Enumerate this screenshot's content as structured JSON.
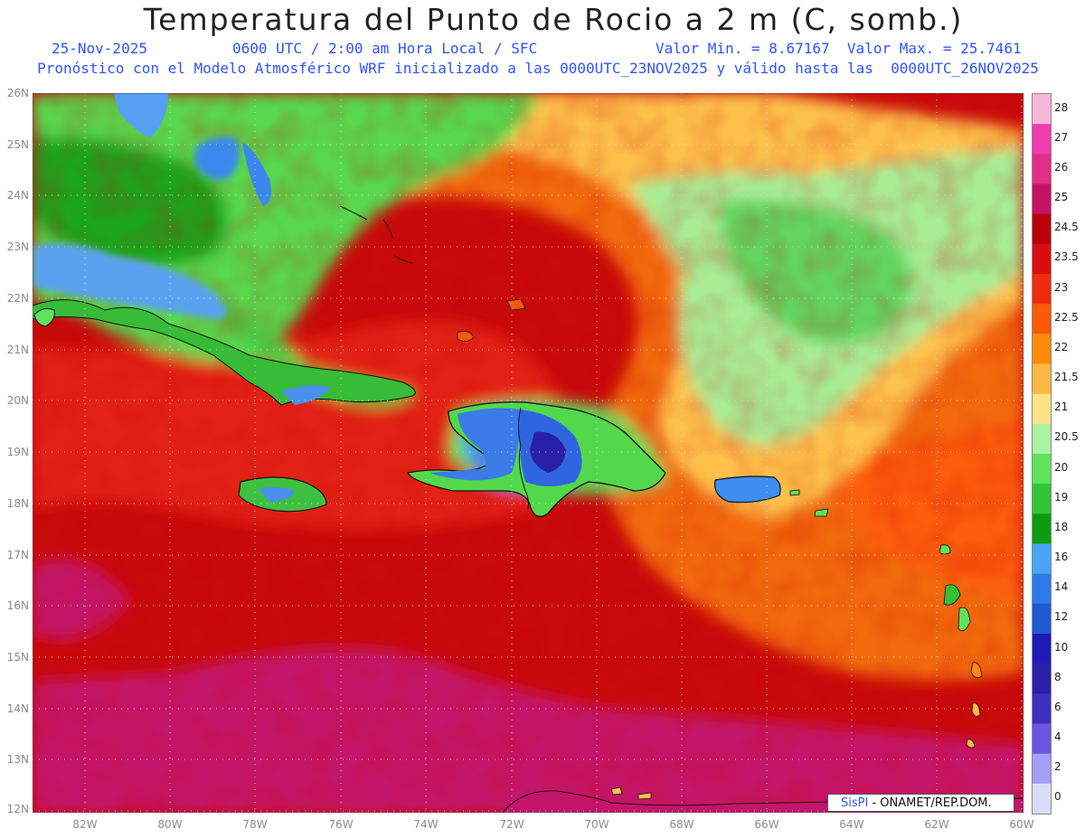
{
  "title": "Temperatura del Punto de Rocio a 2 m (C, somb.)",
  "subtitle": {
    "date": "25-Nov-2025",
    "time": "0600 UTC / 2:00 am Hora Local / SFC",
    "minmax": "Valor Min. = 8.67167  Valor Max. = 25.7461",
    "model_line": "Pronóstico con el Modelo Atmosférico WRF inicializado a las 0000UTC_23NOV2025 y válido hasta las  0000UTC_26NOV2025"
  },
  "map": {
    "lon_range": [
      -83.2,
      -60.0
    ],
    "lat_range": [
      11.9,
      26.1
    ],
    "lat_labels": [
      "26N",
      "25N",
      "24N",
      "23N",
      "22N",
      "21N",
      "20N",
      "19N",
      "18N",
      "17N",
      "16N",
      "15N",
      "14N",
      "13N",
      "12N"
    ],
    "lon_labels": [
      "82W",
      "80W",
      "78W",
      "76W",
      "74W",
      "72W",
      "70W",
      "68W",
      "66W",
      "64W",
      "62W",
      "60W"
    ]
  },
  "colorbar": {
    "labels": [
      "28",
      "27",
      "26",
      "25",
      "24.5",
      "23.5",
      "23",
      "22.5",
      "22",
      "21.5",
      "21",
      "20.5",
      "20",
      "19",
      "18",
      "16",
      "14",
      "12",
      "10",
      "8",
      "6",
      "4",
      "2",
      "0"
    ],
    "colors": [
      "#f6b6d8",
      "#ef3cb0",
      "#e22d8a",
      "#c41461",
      "#b8000a",
      "#d90f0f",
      "#ee2d0f",
      "#fb5b0a",
      "#fc8a0c",
      "#fdb742",
      "#fde386",
      "#aaf3a0",
      "#5fe25c",
      "#33c433",
      "#0d9c10",
      "#4aa4f5",
      "#2e79ea",
      "#1e5ad2",
      "#1d1ab7",
      "#2b1fa7",
      "#3f2fc0",
      "#6b55e1",
      "#a59ef4",
      "#dcdcf8"
    ]
  },
  "credit": {
    "brand": "SisPI",
    "org": " - ONAMET/REP.DOM."
  }
}
